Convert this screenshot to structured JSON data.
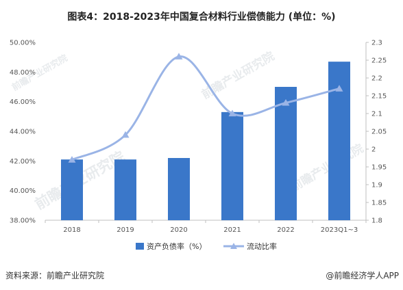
{
  "title": "图表4：2018-2023年中国复合材料行业偿债能力 (单位：%)",
  "source": "资料来源：前瞻产业研究院",
  "brand": "@前瞻经济学人APP",
  "watermark": "前瞻产业研究院",
  "colors": {
    "bar": "#3a77c9",
    "line": "#9ab4e6"
  },
  "chart_data": {
    "type": "bar",
    "categories": [
      "2018",
      "2019",
      "2020",
      "2021",
      "2022",
      "2023Q1~3"
    ],
    "series": [
      {
        "name": "资产负债率（%）",
        "type": "bar",
        "axis": "left",
        "values": [
          42.1,
          42.1,
          42.2,
          45.3,
          47.0,
          48.7
        ]
      },
      {
        "name": "流动比率",
        "type": "line",
        "axis": "right",
        "values": [
          1.97,
          2.04,
          2.26,
          2.1,
          2.13,
          2.17
        ]
      }
    ],
    "y_left": {
      "min": 38,
      "max": 50,
      "step": 2,
      "ticks": [
        "38.00%",
        "40.00%",
        "42.00%",
        "44.00%",
        "46.00%",
        "48.00%",
        "50.00%"
      ]
    },
    "y_right": {
      "min": 1.8,
      "max": 2.3,
      "step": 0.05,
      "ticks": [
        "1.8",
        "1.85",
        "1.9",
        "1.95",
        "2",
        "2.05",
        "2.1",
        "2.15",
        "2.2",
        "2.25",
        "2.3"
      ]
    },
    "grid": false,
    "legend": "bottom-center"
  }
}
